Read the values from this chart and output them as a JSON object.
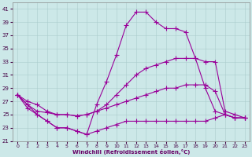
{
  "xlabel": "Windchill (Refroidissement éolien,°C)",
  "background_color": "#cce8e8",
  "grid_color": "#aacccc",
  "line_color": "#990099",
  "line1_x": [
    0,
    1,
    2,
    3,
    4,
    5,
    6,
    7,
    8,
    9,
    10,
    11,
    12,
    13,
    14,
    15,
    16,
    17,
    18,
    19,
    20,
    21,
    22,
    23
  ],
  "line1_y": [
    28,
    26.5,
    25,
    24,
    23,
    23,
    22.5,
    22,
    26.5,
    30,
    34,
    38.5,
    40.5,
    40.5,
    39,
    38,
    38,
    37.5,
    33.5,
    29,
    25.5,
    25,
    24.5,
    24.5
  ],
  "line2_x": [
    0,
    1,
    2,
    3,
    4,
    5,
    6,
    7,
    8,
    9,
    10,
    11,
    12,
    13,
    14,
    15,
    16,
    17,
    18,
    19,
    20,
    21,
    22,
    23
  ],
  "line2_y": [
    28,
    27,
    26.5,
    25.5,
    25,
    25,
    24.8,
    25,
    25.5,
    26.5,
    28,
    29.5,
    31,
    32,
    32.5,
    33,
    33.5,
    33.5,
    33.5,
    33,
    33,
    25.5,
    25,
    24.5
  ],
  "line3_x": [
    0,
    1,
    2,
    3,
    4,
    5,
    6,
    7,
    8,
    9,
    10,
    11,
    12,
    13,
    14,
    15,
    16,
    17,
    18,
    19,
    20,
    21,
    22,
    23
  ],
  "line3_y": [
    28,
    26.5,
    25.5,
    25.3,
    25,
    25,
    24.8,
    25,
    25.5,
    26,
    26.5,
    27,
    27.5,
    28,
    28.5,
    29,
    29,
    29.5,
    29.5,
    29.5,
    28.5,
    25,
    24.5,
    24.5
  ],
  "line4_x": [
    0,
    1,
    2,
    3,
    4,
    5,
    6,
    7,
    8,
    9,
    10,
    11,
    12,
    13,
    14,
    15,
    16,
    17,
    18,
    19,
    20,
    21,
    22,
    23
  ],
  "line4_y": [
    28,
    26,
    25,
    24,
    23,
    23,
    22.5,
    22,
    22.5,
    23,
    23.5,
    24,
    24,
    24,
    24,
    24,
    24,
    24,
    24,
    24,
    24.5,
    25,
    24.5,
    24.5
  ],
  "ylim": [
    21,
    42
  ],
  "yticks": [
    21,
    23,
    25,
    27,
    29,
    31,
    33,
    35,
    37,
    39,
    41
  ],
  "xticks": [
    0,
    1,
    2,
    3,
    4,
    5,
    6,
    7,
    8,
    9,
    10,
    11,
    12,
    13,
    14,
    15,
    16,
    17,
    18,
    19,
    20,
    21,
    22,
    23
  ]
}
